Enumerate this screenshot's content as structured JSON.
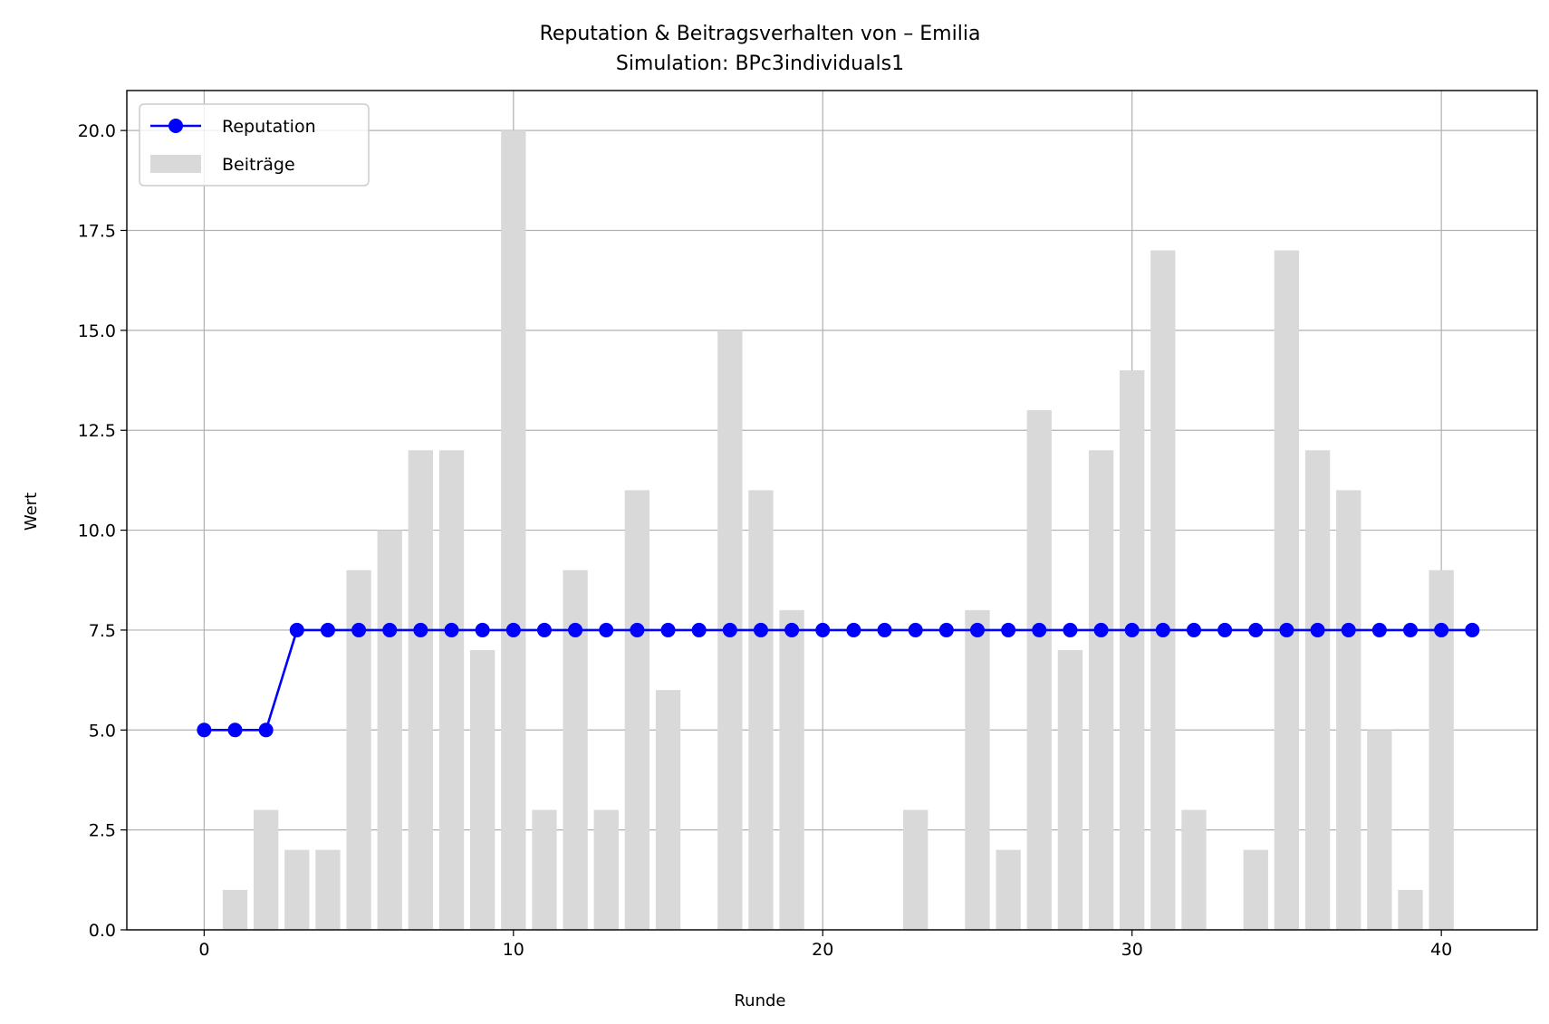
{
  "chart_data": {
    "type": "bar+line",
    "title_line1": "Reputation & Beitragsverhalten von – Emilia",
    "title_line2": "Simulation: BPc3individuals1",
    "xlabel": "Runde",
    "ylabel": "Wert",
    "xlim": [
      -2.5,
      43.1
    ],
    "ylim": [
      0,
      21
    ],
    "xticks": [
      0,
      10,
      20,
      30,
      40
    ],
    "yticks": [
      0.0,
      2.5,
      5.0,
      7.5,
      10.0,
      12.5,
      15.0,
      17.5,
      20.0
    ],
    "grid": true,
    "legend": {
      "position": "top-left",
      "reputation_label": "Reputation",
      "contributions_label": "Beiträge"
    },
    "colors": {
      "reputation": "#0000ff",
      "contributions": "#d9d9d9",
      "grid": "#b0b0b0"
    },
    "bars": {
      "name": "Beiträge",
      "x": [
        0,
        1,
        2,
        3,
        4,
        5,
        6,
        7,
        8,
        9,
        10,
        11,
        12,
        13,
        14,
        15,
        16,
        17,
        18,
        19,
        20,
        21,
        22,
        23,
        24,
        25,
        26,
        27,
        28,
        29,
        30,
        31,
        32,
        33,
        34,
        35,
        36,
        37,
        38,
        39,
        40
      ],
      "values": [
        0,
        1,
        3,
        2,
        2,
        9,
        10,
        12,
        12,
        7,
        20,
        3,
        9,
        3,
        11,
        6,
        0,
        15,
        11,
        8,
        0,
        0,
        0,
        3,
        0,
        8,
        2,
        13,
        7,
        12,
        14,
        17,
        3,
        0,
        2,
        17,
        12,
        11,
        5,
        1,
        9
      ]
    },
    "line": {
      "name": "Reputation",
      "x": [
        0,
        1,
        2,
        3,
        4,
        5,
        6,
        7,
        8,
        9,
        10,
        11,
        12,
        13,
        14,
        15,
        16,
        17,
        18,
        19,
        20,
        21,
        22,
        23,
        24,
        25,
        26,
        27,
        28,
        29,
        30,
        31,
        32,
        33,
        34,
        35,
        36,
        37,
        38,
        39,
        40,
        41
      ],
      "values": [
        5,
        5,
        5,
        7.5,
        7.5,
        7.5,
        7.5,
        7.5,
        7.5,
        7.5,
        7.5,
        7.5,
        7.5,
        7.5,
        7.5,
        7.5,
        7.5,
        7.5,
        7.5,
        7.5,
        7.5,
        7.5,
        7.5,
        7.5,
        7.5,
        7.5,
        7.5,
        7.5,
        7.5,
        7.5,
        7.5,
        7.5,
        7.5,
        7.5,
        7.5,
        7.5,
        7.5,
        7.5,
        7.5,
        7.5,
        7.5,
        7.5
      ]
    }
  }
}
